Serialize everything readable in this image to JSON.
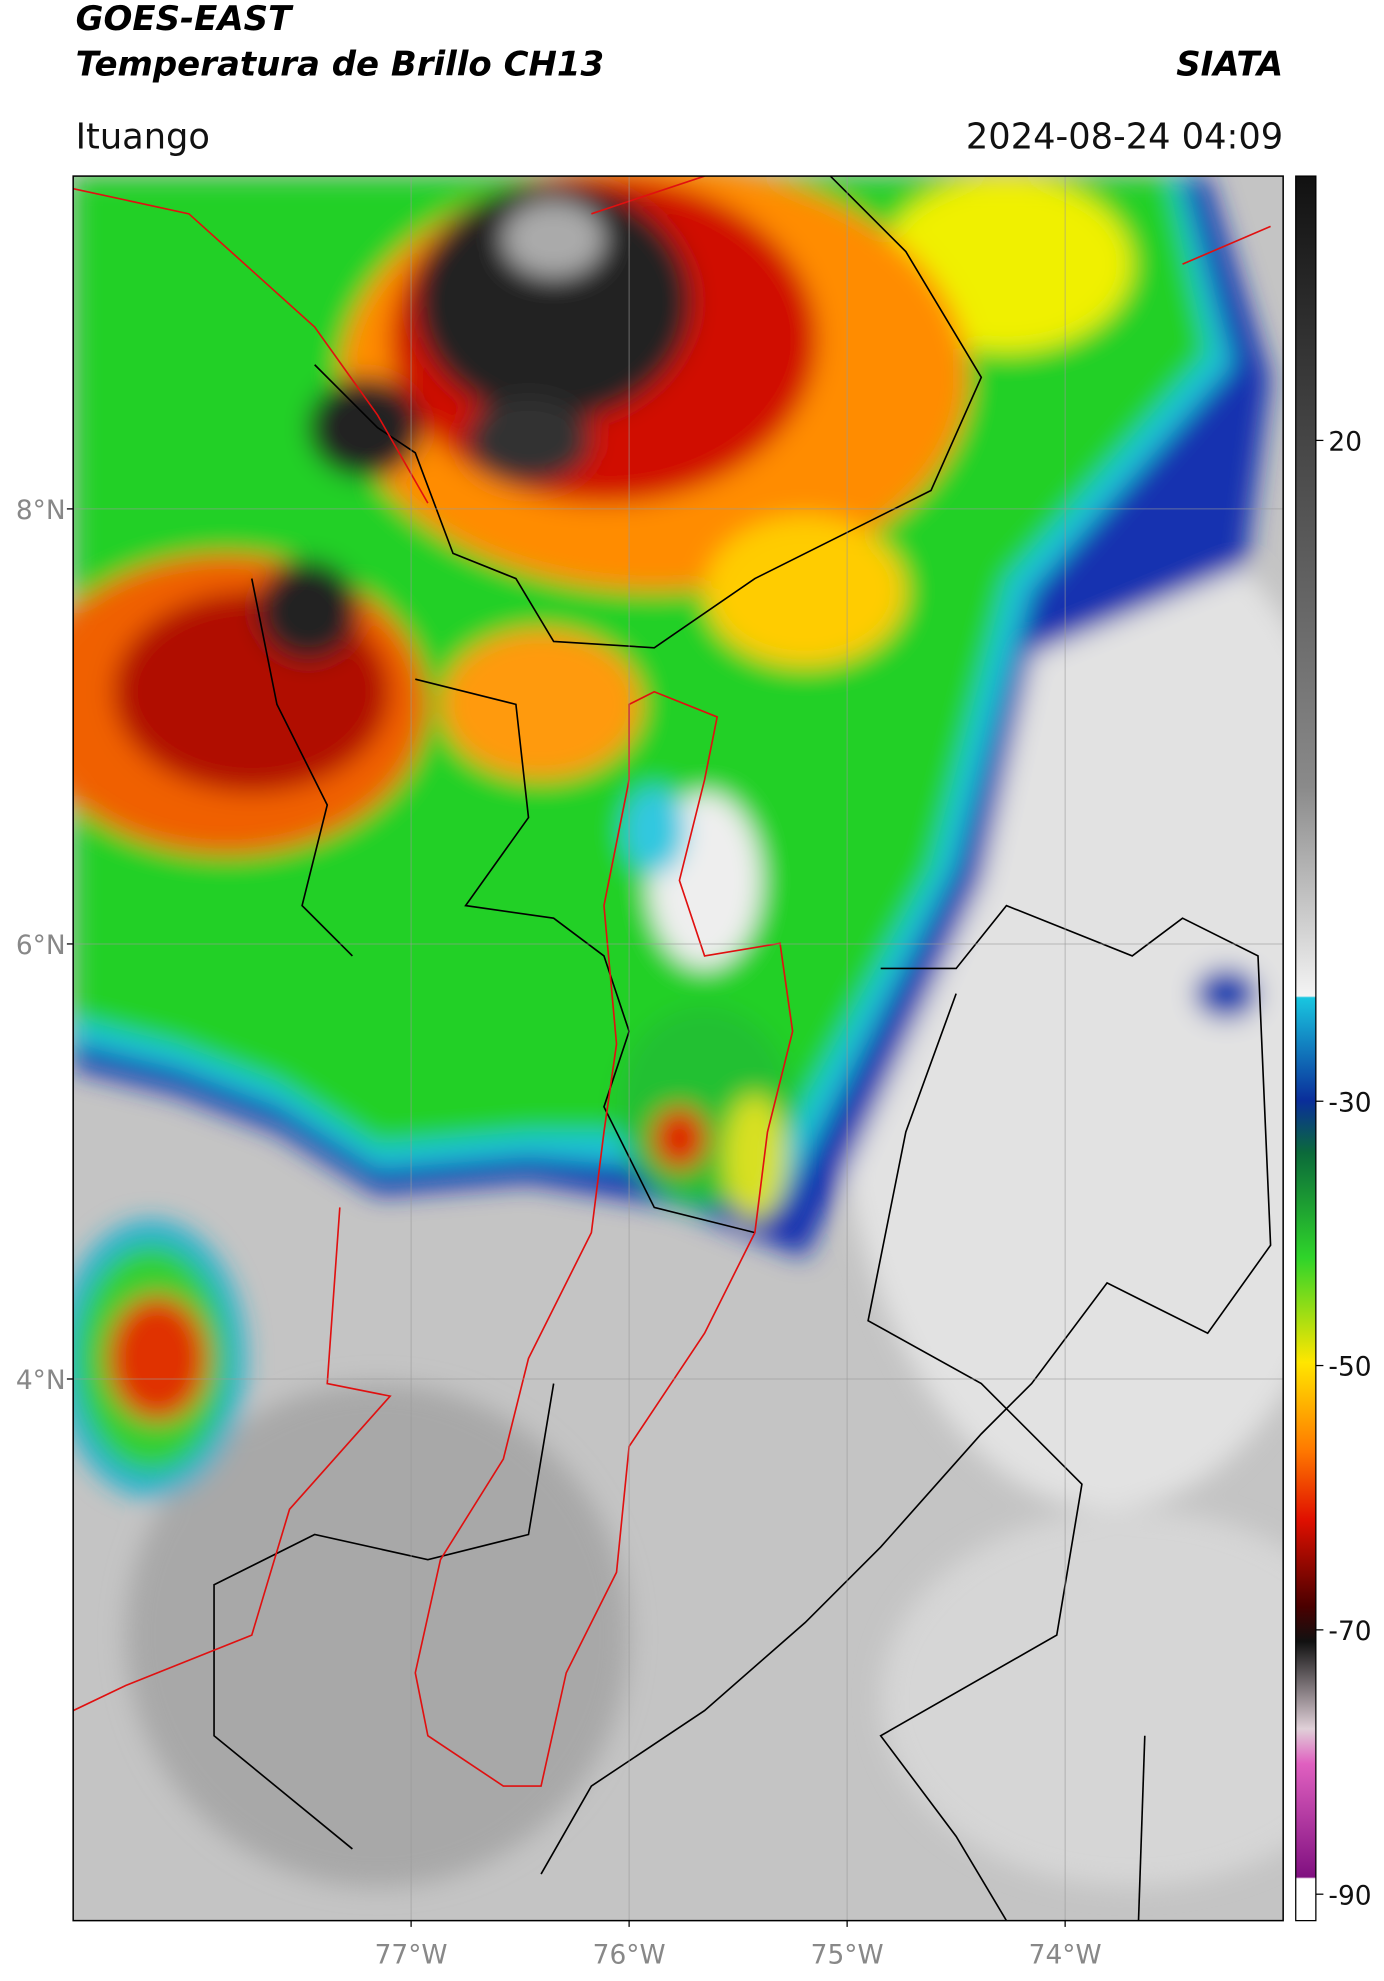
{
  "header": {
    "title": "GOES-EAST",
    "subtitle": "Temperatura de Brillo CH13",
    "brand": "SIATA",
    "location": "Ituango",
    "timestamp": "2024-08-24 04:09"
  },
  "map": {
    "latlim": [
      1.51,
      9.53
    ],
    "lonlim": [
      -78.55,
      -73.0
    ],
    "grid": true,
    "lat_ticks": [
      {
        "value": 8,
        "label": "8°N"
      },
      {
        "value": 6,
        "label": "6°N"
      },
      {
        "value": 4,
        "label": "4°N"
      }
    ],
    "lon_ticks": [
      {
        "value": -77,
        "label": "77°W"
      },
      {
        "value": -76,
        "label": "76°W"
      },
      {
        "value": -75,
        "label": "75°W"
      },
      {
        "value": -74,
        "label": "74°W"
      }
    ]
  },
  "colorbar": {
    "lim": [
      -92,
      40
    ],
    "ticks": [
      20,
      -30,
      -50,
      -70,
      -90
    ]
  }
}
